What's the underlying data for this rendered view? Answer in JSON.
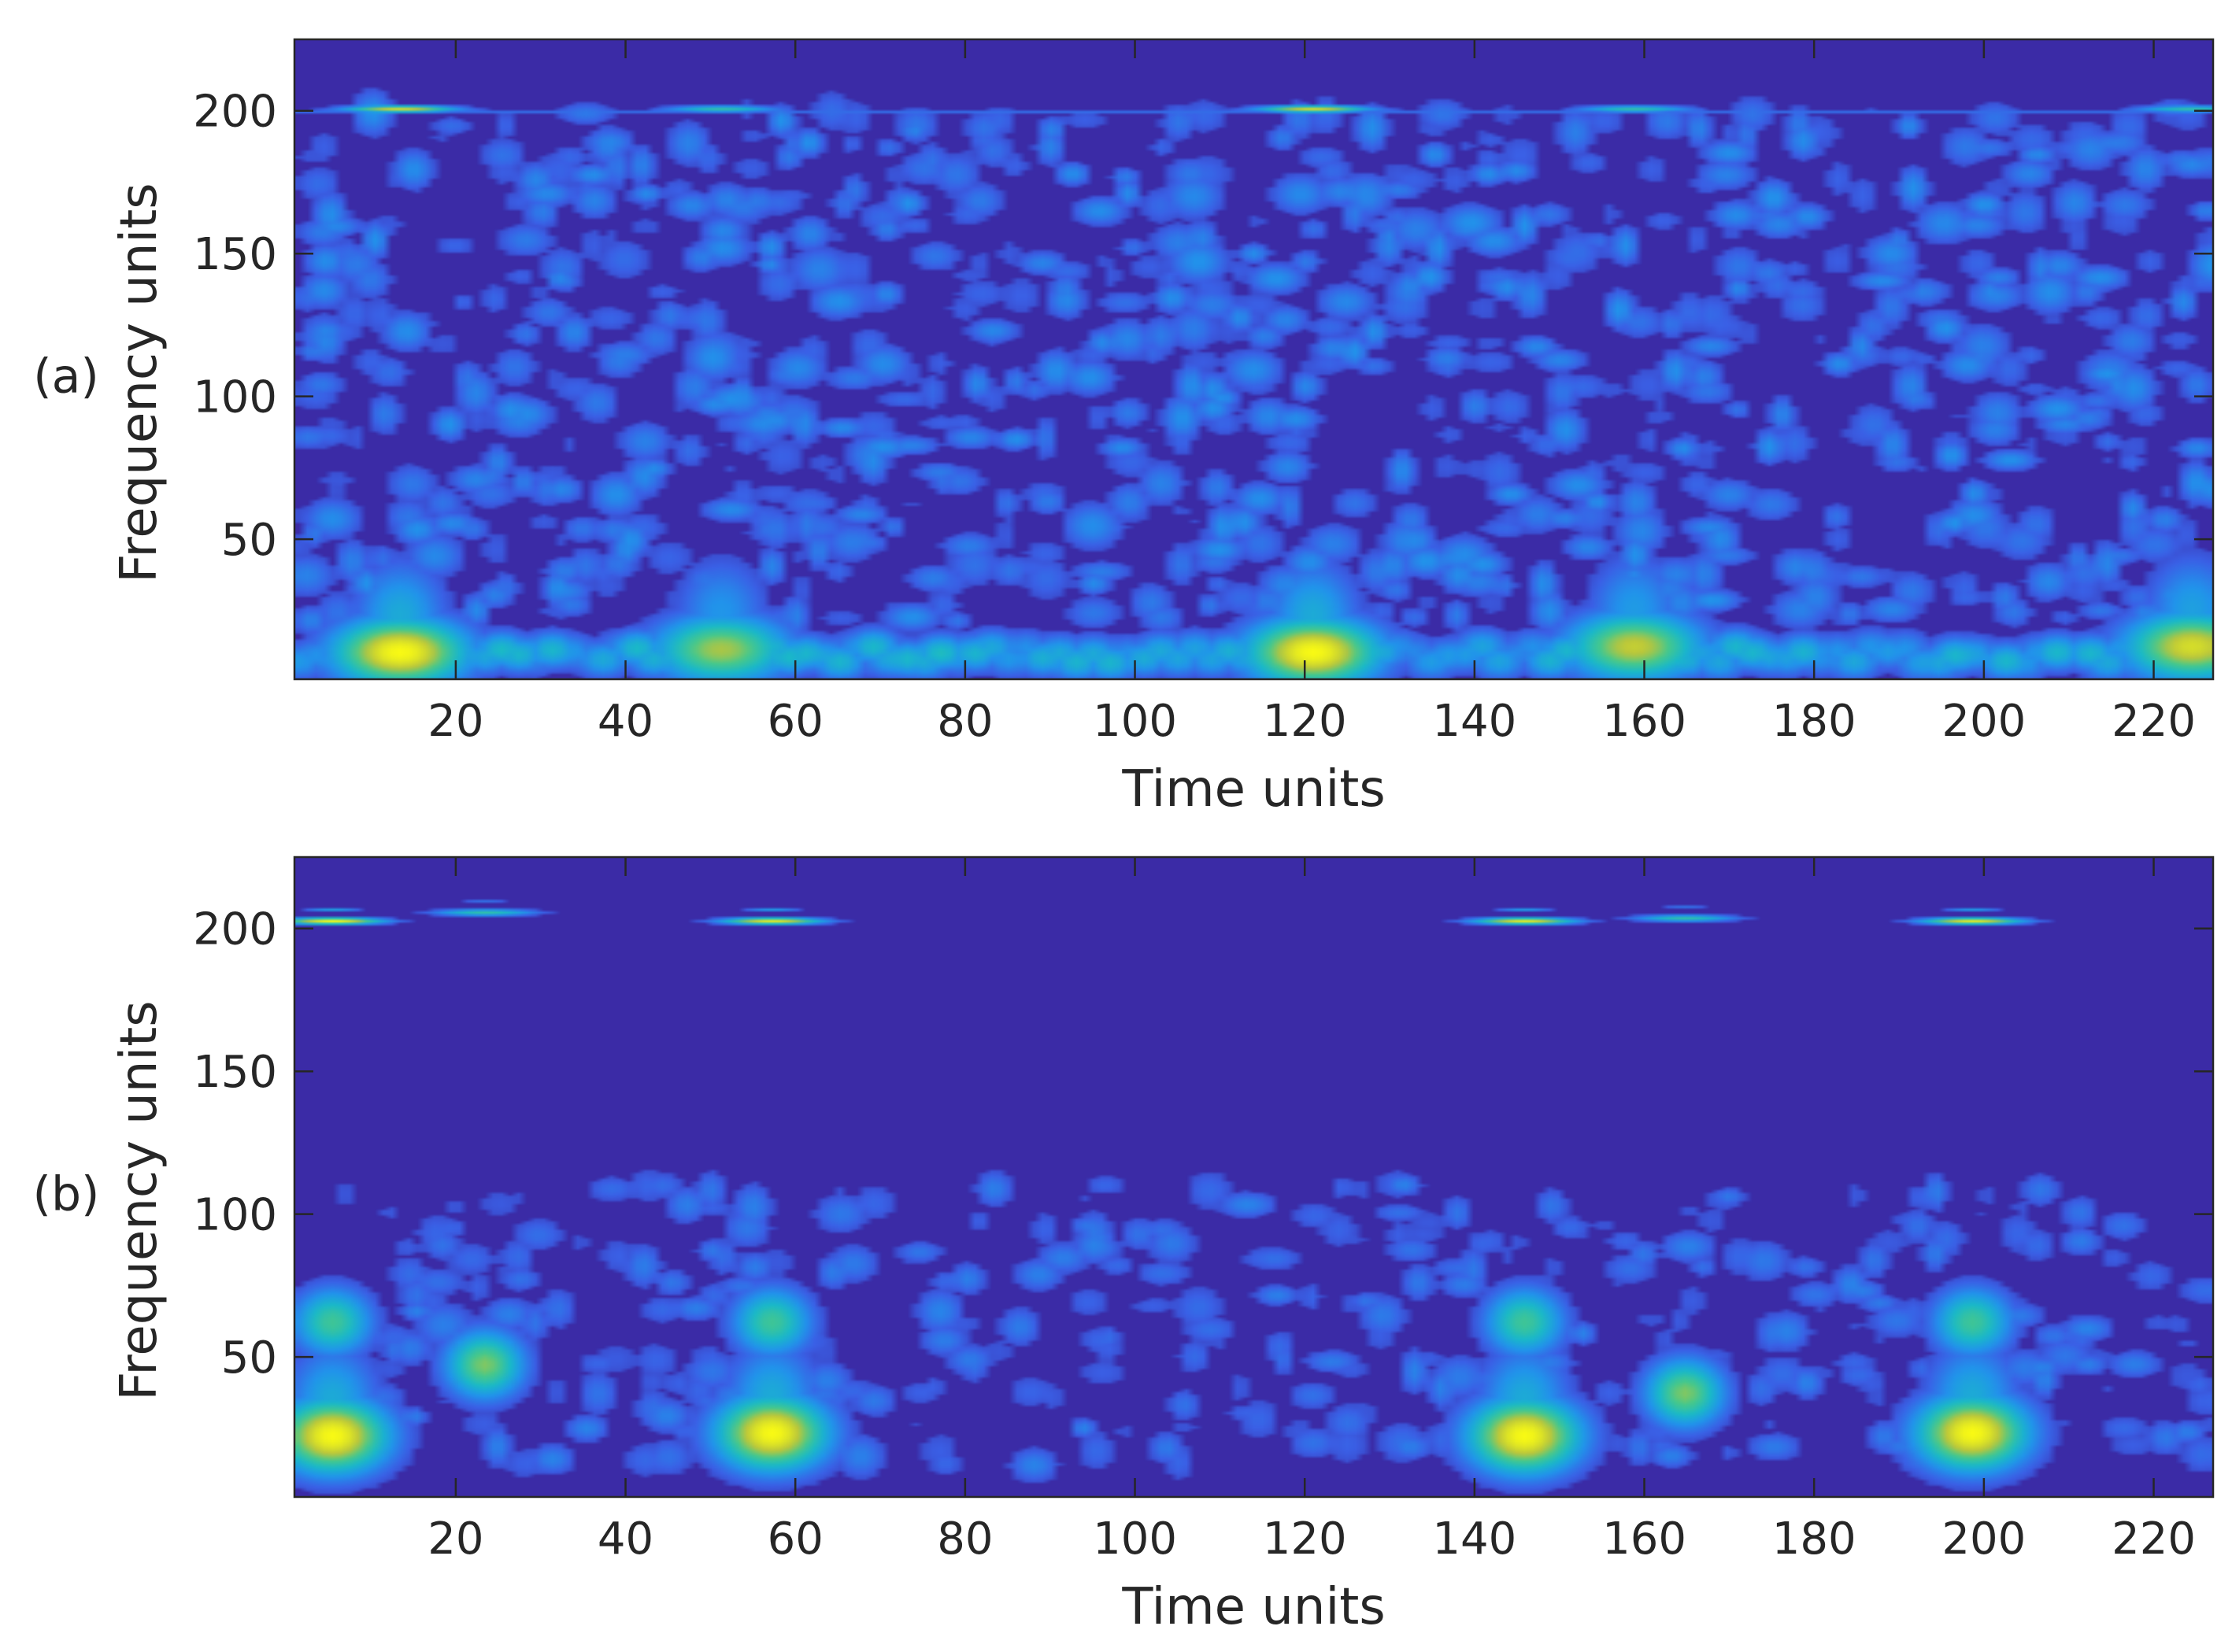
{
  "chart_data": [
    {
      "type": "heatmap",
      "panel_label": "(a)",
      "xlabel": "Time units",
      "ylabel": "Frequency units",
      "xlim": [
        1,
        227
      ],
      "ylim": [
        1,
        225
      ],
      "xticks": [
        20,
        40,
        60,
        80,
        100,
        120,
        140,
        160,
        180,
        200,
        220
      ],
      "yticks": [
        50,
        100,
        150,
        200
      ],
      "colormap": "parula",
      "background_color": "#3b2ba6",
      "features": [
        {
          "kind": "low-frequency blob",
          "time": 13,
          "freq": 10,
          "intensity": 1.0
        },
        {
          "kind": "low-frequency blob",
          "time": 51,
          "freq": 11,
          "intensity": 0.8
        },
        {
          "kind": "low-frequency blob",
          "time": 121,
          "freq": 10,
          "intensity": 1.0
        },
        {
          "kind": "low-frequency blob",
          "time": 159,
          "freq": 12,
          "intensity": 0.85
        },
        {
          "kind": "low-frequency blob",
          "time": 225,
          "freq": 12,
          "intensity": 0.9
        },
        {
          "kind": "low-frequency band",
          "time_range": [
            1,
            227
          ],
          "freq": 8,
          "intensity": 0.5
        },
        {
          "kind": "line at 200",
          "time_range": [
            1,
            227
          ],
          "freq": 200,
          "intensity": 0.6
        },
        {
          "kind": "line at 200 highlight",
          "time": 13,
          "freq": 201,
          "intensity": 0.9
        },
        {
          "kind": "line at 200 highlight",
          "time": 121,
          "freq": 201,
          "intensity": 0.9
        },
        {
          "kind": "line at 200 highlight",
          "time": 159,
          "freq": 201,
          "intensity": 0.6
        },
        {
          "kind": "line at 200 highlight",
          "time": 51,
          "freq": 201,
          "intensity": 0.6
        },
        {
          "kind": "line at 200 highlight",
          "time": 225,
          "freq": 201,
          "intensity": 0.6
        },
        {
          "kind": "scattered texture",
          "freq_range": [
            20,
            200
          ],
          "intensity": 0.35
        }
      ]
    },
    {
      "type": "heatmap",
      "panel_label": "(b)",
      "xlabel": "Time units",
      "ylabel": "Frequency units",
      "xlim": [
        1,
        227
      ],
      "ylim": [
        1,
        225
      ],
      "xticks": [
        20,
        40,
        60,
        80,
        100,
        120,
        140,
        160,
        180,
        200,
        220
      ],
      "yticks": [
        50,
        100,
        150,
        200
      ],
      "colormap": "parula",
      "background_color": "#3b2ba6",
      "features": [
        {
          "kind": "low-frequency blob",
          "time": 5,
          "freq": 22,
          "intensity": 1.0
        },
        {
          "kind": "mid blob",
          "time": 5,
          "freq": 62,
          "intensity": 0.65
        },
        {
          "kind": "mid blob",
          "time": 23,
          "freq": 47,
          "intensity": 0.75
        },
        {
          "kind": "low-frequency blob",
          "time": 57,
          "freq": 23,
          "intensity": 1.0
        },
        {
          "kind": "mid blob",
          "time": 57,
          "freq": 62,
          "intensity": 0.65
        },
        {
          "kind": "low-frequency blob",
          "time": 146,
          "freq": 22,
          "intensity": 1.0
        },
        {
          "kind": "mid blob",
          "time": 146,
          "freq": 62,
          "intensity": 0.65
        },
        {
          "kind": "mid blob",
          "time": 165,
          "freq": 37,
          "intensity": 0.75
        },
        {
          "kind": "low-frequency blob",
          "time": 199,
          "freq": 23,
          "intensity": 1.0
        },
        {
          "kind": "mid blob",
          "time": 199,
          "freq": 62,
          "intensity": 0.65
        },
        {
          "kind": "high-frequency dash",
          "time": 5,
          "freq": 203,
          "intensity": 1.0
        },
        {
          "kind": "high-frequency dash",
          "time": 23,
          "freq": 206,
          "intensity": 0.6
        },
        {
          "kind": "high-frequency dash",
          "time": 57,
          "freq": 203,
          "intensity": 0.95
        },
        {
          "kind": "high-frequency dash",
          "time": 146,
          "freq": 203,
          "intensity": 0.95
        },
        {
          "kind": "high-frequency dash",
          "time": 165,
          "freq": 204,
          "intensity": 0.6
        },
        {
          "kind": "high-frequency dash",
          "time": 199,
          "freq": 203,
          "intensity": 0.95
        },
        {
          "kind": "scattered texture",
          "freq_range": [
            10,
            110
          ],
          "intensity": 0.3
        }
      ]
    }
  ]
}
